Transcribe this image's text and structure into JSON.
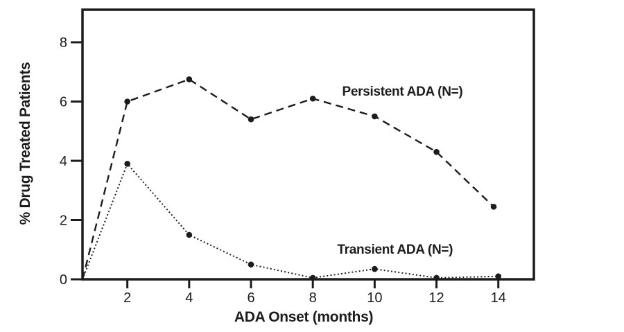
{
  "page": {
    "background": "#ffffff",
    "ink": "#1c1c1c"
  },
  "chart_data": {
    "type": "line",
    "title": "",
    "xlabel": "ADA Onset (months)",
    "ylabel": "% Drug Treated Patients",
    "xlim": [
      0.55,
      15.15
    ],
    "ylim": [
      0,
      9.1
    ],
    "x_ticks": [
      2,
      4,
      6,
      8,
      10,
      12,
      14
    ],
    "y_ticks": [
      0,
      2,
      4,
      6,
      8
    ],
    "grid": false,
    "legend_position": "inline-annotations",
    "series": [
      {
        "name": "Persistent ADA (N=)",
        "line_style": "dashed",
        "marker": "circle",
        "first_point_marker": false,
        "x": [
          0.55,
          2,
          4,
          6,
          8,
          10,
          12,
          13.85
        ],
        "values": [
          0,
          6.0,
          6.75,
          5.4,
          6.1,
          5.5,
          4.3,
          2.45
        ],
        "annotation": {
          "text": "Persistent ADA (N=)",
          "x": 10.9,
          "y": 6.32
        }
      },
      {
        "name": "Transient ADA (N=)",
        "line_style": "dotted",
        "marker": "circle",
        "first_point_marker": false,
        "x": [
          0.55,
          2,
          4,
          6,
          8,
          10,
          12,
          14
        ],
        "values": [
          0,
          3.9,
          1.5,
          0.5,
          0.05,
          0.35,
          0.05,
          0.1
        ],
        "annotation": {
          "text": "Transient ADA (N=)",
          "x": 10.66,
          "y": 0.98
        }
      }
    ]
  }
}
